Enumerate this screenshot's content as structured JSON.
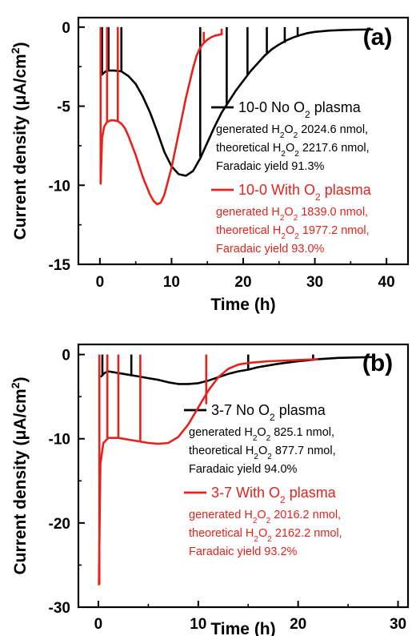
{
  "chart_data": [
    {
      "type": "line",
      "panel_label": "(a)",
      "xlabel": "Time (h)",
      "ylabel_parts": [
        "Current density (",
        "μ",
        "A/cm",
        "2",
        ")"
      ],
      "xlim": [
        -3,
        43
      ],
      "ylim": [
        -15,
        0.6
      ],
      "xticks": [
        0,
        10,
        20,
        30,
        40
      ],
      "yticks": [
        0,
        -5,
        -10,
        -15
      ],
      "legend_position": "right",
      "series": [
        {
          "name": "10-0 No O2 plasma",
          "name_parts": [
            "10-0 No O",
            "2",
            " plasma"
          ],
          "color": "#000000",
          "notes": [
            [
              "generated H",
              "2",
              "O",
              "2",
              " 2024.6 nmol,"
            ],
            [
              "theoretical H",
              "2",
              "O",
              "2",
              " 2217.6 nmol,"
            ],
            [
              "Faradaic yield 91.3%"
            ]
          ],
          "x": [
            0.3,
            0.8,
            1.2,
            1.5,
            2,
            3,
            4,
            5,
            6,
            7,
            8,
            9,
            10,
            11,
            12,
            13,
            14,
            15,
            16,
            17,
            18,
            19,
            20,
            21,
            22,
            23,
            24,
            25,
            26,
            27,
            28,
            29,
            30,
            32,
            34,
            36,
            38
          ],
          "y": [
            -3.0,
            -2.8,
            -2.75,
            -2.75,
            -2.75,
            -2.8,
            -3.1,
            -3.6,
            -4.4,
            -5.4,
            -6.6,
            -7.9,
            -8.8,
            -9.3,
            -9.4,
            -9.1,
            -8.3,
            -7.3,
            -6.3,
            -5.4,
            -4.7,
            -4.0,
            -3.4,
            -2.8,
            -2.3,
            -1.8,
            -1.4,
            -1.1,
            -0.85,
            -0.65,
            -0.5,
            -0.38,
            -0.3,
            -0.22,
            -0.18,
            -0.16,
            -0.15
          ],
          "spikes": [
            {
              "x": 0.3,
              "y0": -3.0,
              "y1": 0.0
            },
            {
              "x": 1.2,
              "y0": -2.75,
              "y1": 0.0
            },
            {
              "x": 3.0,
              "y0": -2.8,
              "y1": 0.0
            },
            {
              "x": 14.0,
              "y0": -8.2,
              "y1": 0.0
            },
            {
              "x": 17.7,
              "y0": -4.9,
              "y1": 0.0
            },
            {
              "x": 20.6,
              "y0": -3.0,
              "y1": 0.0
            },
            {
              "x": 23.3,
              "y0": -1.7,
              "y1": 0.0
            },
            {
              "x": 25.8,
              "y0": -1.0,
              "y1": 0.0
            },
            {
              "x": 27.6,
              "y0": -0.62,
              "y1": 0.0
            }
          ]
        },
        {
          "name": "10-0 With O2 plasma",
          "name_parts": [
            "10-0 With O",
            "2",
            " plasma"
          ],
          "color": "#e8221b",
          "notes": [
            [
              "generated H",
              "2",
              "O",
              "2",
              " 1839.0 nmol,"
            ],
            [
              "theoretical H",
              "2",
              "O",
              "2",
              " 1977.2 nmol,"
            ],
            [
              "Faradaic yield 93.0%"
            ]
          ],
          "x": [
            0.1,
            0.3,
            0.6,
            1.0,
            1.5,
            2.0,
            2.5,
            3.0,
            3.5,
            4.0,
            5.0,
            6.0,
            7.0,
            7.5,
            8.0,
            8.5,
            9.0,
            10.0,
            11.0,
            12.0,
            13.0,
            13.5,
            14.0,
            14.5,
            15.0,
            15.5,
            16.0,
            16.5,
            17.0
          ],
          "y": [
            -9.9,
            -7.0,
            -6.3,
            -6.0,
            -5.9,
            -5.9,
            -5.95,
            -6.1,
            -6.4,
            -6.9,
            -8.1,
            -9.5,
            -10.6,
            -11.0,
            -11.2,
            -11.1,
            -10.6,
            -8.9,
            -6.7,
            -4.5,
            -2.6,
            -1.8,
            -1.3,
            -1.0,
            -0.8,
            -0.65,
            -0.55,
            -0.5,
            -0.45
          ],
          "spikes": [
            {
              "x": 0.1,
              "y0": -9.9,
              "y1": 0.0
            },
            {
              "x": 1.0,
              "y0": -6.0,
              "y1": 0.0
            },
            {
              "x": 2.5,
              "y0": -5.95,
              "y1": 0.0
            },
            {
              "x": 14.5,
              "y0": -1.0,
              "y1": -0.3
            },
            {
              "x": 17.0,
              "y0": -0.45,
              "y1": -0.1
            }
          ]
        }
      ]
    },
    {
      "type": "line",
      "panel_label": "(b)",
      "xlabel": "Time (h)",
      "ylabel_parts": [
        "Current density (",
        "μ",
        "A/cm",
        "2",
        ")"
      ],
      "xlim": [
        -2,
        31
      ],
      "ylim": [
        -30,
        1.2
      ],
      "xticks": [
        0,
        10,
        20,
        30
      ],
      "yticks": [
        0,
        -10,
        -20,
        -30
      ],
      "legend_position": "right",
      "series": [
        {
          "name": "3-7 No O2 plasma",
          "name_parts": [
            "3-7 No O",
            "2",
            " plasma"
          ],
          "color": "#000000",
          "notes": [
            [
              "generated H",
              "2",
              "O",
              "2",
              " 825.1 nmol,"
            ],
            [
              "theoretical H",
              "2",
              "O",
              "2",
              " 877.7 nmol,"
            ],
            [
              "Faradaic yield 94.0%"
            ]
          ],
          "x": [
            0.3,
            0.6,
            1.0,
            2.0,
            3.0,
            4.0,
            5.0,
            6.0,
            7.0,
            8.0,
            9.0,
            10.0,
            11.0,
            12.0,
            13.0,
            14.0,
            15.0,
            16.0,
            18.0,
            20.0,
            22.0,
            24.0,
            27.3
          ],
          "y": [
            -2.6,
            -2.2,
            -2.0,
            -2.2,
            -2.4,
            -2.6,
            -2.8,
            -3.0,
            -3.3,
            -3.5,
            -3.5,
            -3.4,
            -3.1,
            -2.7,
            -2.3,
            -2.0,
            -1.8,
            -1.5,
            -1.1,
            -0.8,
            -0.55,
            -0.4,
            -0.3
          ],
          "spikes": [
            {
              "x": 0.4,
              "y0": -2.4,
              "y1": 0.0
            },
            {
              "x": 0.9,
              "y0": -2.0,
              "y1": 0.0
            },
            {
              "x": 3.3,
              "y0": -2.4,
              "y1": 0.0
            },
            {
              "x": 15.0,
              "y0": -1.8,
              "y1": 0.0
            },
            {
              "x": 21.5,
              "y0": -0.6,
              "y1": 0.0
            }
          ]
        },
        {
          "name": "3-7 With O2 plasma",
          "name_parts": [
            "3-7 With O",
            "2",
            " plasma"
          ],
          "color": "#e8221b",
          "notes": [
            [
              "generated H",
              "2",
              "O",
              "2",
              " 2016.2 nmol,"
            ],
            [
              "theoretical H",
              "2",
              "O",
              "2",
              " 2162.2 nmol,"
            ],
            [
              "Faradaic yield 93.2%"
            ]
          ],
          "x": [
            0.05,
            0.2,
            0.5,
            1.0,
            2.0,
            3.0,
            4.0,
            5.0,
            6.0,
            7.0,
            8.0,
            9.0,
            10.0,
            11.0,
            12.0,
            13.0,
            14.0,
            15.0,
            16.0,
            17.0,
            18.0,
            19.0,
            20.0,
            21.0,
            21.9
          ],
          "y": [
            -27.3,
            -13.0,
            -10.5,
            -9.9,
            -9.9,
            -10.1,
            -10.3,
            -10.5,
            -10.6,
            -10.5,
            -9.8,
            -8.3,
            -6.3,
            -4.3,
            -2.7,
            -1.7,
            -1.2,
            -1.0,
            -0.9,
            -0.8,
            -0.75,
            -0.7,
            -0.65,
            -0.6,
            -0.55
          ],
          "spikes": [
            {
              "x": 0.1,
              "y0": -27.3,
              "y1": 0.0
            },
            {
              "x": 0.9,
              "y0": -9.9,
              "y1": 0.0
            },
            {
              "x": 2.0,
              "y0": -9.9,
              "y1": 0.0
            },
            {
              "x": 4.2,
              "y0": -10.3,
              "y1": 0.0
            },
            {
              "x": 10.8,
              "y0": -5.9,
              "y1": 0.0
            }
          ]
        }
      ]
    }
  ]
}
